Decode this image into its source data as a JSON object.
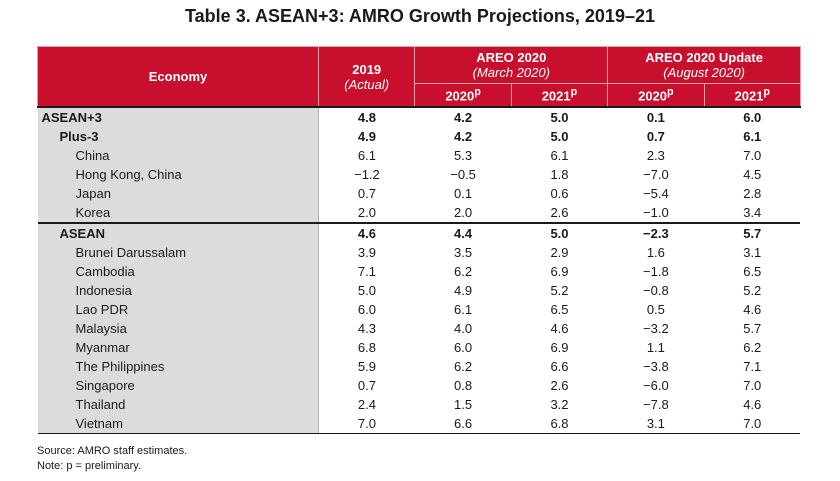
{
  "title": "Table 3. ASEAN+3: AMRO Growth Projections, 2019–21",
  "header": {
    "economy": "Economy",
    "col_2019": "2019",
    "col_2019_sub": "(Actual)",
    "group1": "AREO 2020",
    "group1_sub": "(March 2020)",
    "group2": "AREO 2020 Update",
    "group2_sub": "(August 2020)",
    "sub_2020": "2020",
    "sub_2021": "2021",
    "sup": "p"
  },
  "rows": [
    {
      "name": "ASEAN+3",
      "level": 0,
      "v": [
        "4.8",
        "4.2",
        "5.0",
        "0.1",
        "6.0"
      ]
    },
    {
      "name": "Plus-3",
      "level": 1,
      "v": [
        "4.9",
        "4.2",
        "5.0",
        "0.7",
        "6.1"
      ]
    },
    {
      "name": "China",
      "level": 2,
      "v": [
        "6.1",
        "5.3",
        "6.1",
        "2.3",
        "7.0"
      ]
    },
    {
      "name": "Hong Kong, China",
      "level": 2,
      "v": [
        "−1.2",
        "−0.5",
        "1.8",
        "−7.0",
        "4.5"
      ]
    },
    {
      "name": "Japan",
      "level": 2,
      "v": [
        "0.7",
        "0.1",
        "0.6",
        "−5.4",
        "2.8"
      ]
    },
    {
      "name": "Korea",
      "level": 2,
      "v": [
        "2.0",
        "2.0",
        "2.6",
        "−1.0",
        "3.4"
      ]
    },
    {
      "name": "ASEAN",
      "level": 1,
      "v": [
        "4.6",
        "4.4",
        "5.0",
        "−2.3",
        "5.7"
      ]
    },
    {
      "name": "Brunei Darussalam",
      "level": 2,
      "v": [
        "3.9",
        "3.5",
        "2.9",
        "1.6",
        "3.1"
      ]
    },
    {
      "name": "Cambodia",
      "level": 2,
      "v": [
        "7.1",
        "6.2",
        "6.9",
        "−1.8",
        "6.5"
      ]
    },
    {
      "name": "Indonesia",
      "level": 2,
      "v": [
        "5.0",
        "4.9",
        "5.2",
        "−0.8",
        "5.2"
      ]
    },
    {
      "name": "Lao PDR",
      "level": 2,
      "v": [
        "6.0",
        "6.1",
        "6.5",
        "0.5",
        "4.6"
      ]
    },
    {
      "name": "Malaysia",
      "level": 2,
      "v": [
        "4.3",
        "4.0",
        "4.6",
        "−3.2",
        "5.7"
      ]
    },
    {
      "name": "Myanmar",
      "level": 2,
      "v": [
        "6.8",
        "6.0",
        "6.9",
        "1.1",
        "6.2"
      ]
    },
    {
      "name": "The Philippines",
      "level": 2,
      "v": [
        "5.9",
        "6.2",
        "6.6",
        "−3.8",
        "7.1"
      ]
    },
    {
      "name": "Singapore",
      "level": 2,
      "v": [
        "0.7",
        "0.8",
        "2.6",
        "−6.0",
        "7.0"
      ]
    },
    {
      "name": "Thailand",
      "level": 2,
      "v": [
        "2.4",
        "1.5",
        "3.2",
        "−7.8",
        "4.6"
      ]
    },
    {
      "name": "Vietnam",
      "level": 2,
      "v": [
        "7.0",
        "6.6",
        "6.8",
        "3.1",
        "7.0"
      ]
    }
  ],
  "source": "Source: AMRO staff estimates.",
  "note": "Note: p = preliminary."
}
